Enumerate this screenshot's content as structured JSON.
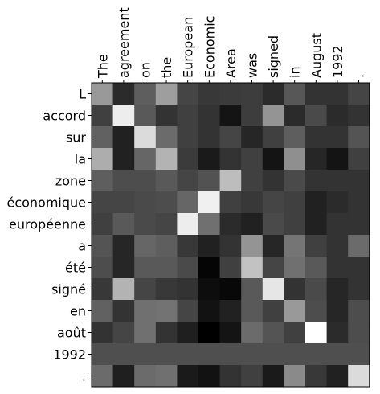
{
  "chart_data": {
    "type": "heatmap",
    "title": "",
    "xlabel": "",
    "ylabel": "",
    "colormap": "gray",
    "x_labels": [
      "The",
      "agreement",
      "on",
      "the",
      "European",
      "Economic",
      "Area",
      "was",
      "signed",
      "in",
      "August",
      "1992",
      "."
    ],
    "y_labels": [
      "L",
      "accord",
      "sur",
      "la",
      "zone",
      "économique",
      "européenne",
      "a",
      "été",
      "signé",
      "en",
      "août",
      "1992",
      "."
    ],
    "values": [
      [
        0.6,
        0.17,
        0.37,
        0.62,
        0.27,
        0.22,
        0.23,
        0.24,
        0.17,
        0.34,
        0.2,
        0.2,
        0.27
      ],
      [
        0.25,
        0.93,
        0.35,
        0.2,
        0.25,
        0.2,
        0.08,
        0.24,
        0.58,
        0.17,
        0.29,
        0.17,
        0.2
      ],
      [
        0.38,
        0.13,
        0.86,
        0.42,
        0.25,
        0.2,
        0.27,
        0.15,
        0.25,
        0.37,
        0.2,
        0.2,
        0.33
      ],
      [
        0.68,
        0.13,
        0.4,
        0.7,
        0.23,
        0.1,
        0.2,
        0.25,
        0.08,
        0.56,
        0.15,
        0.08,
        0.25
      ],
      [
        0.37,
        0.3,
        0.3,
        0.35,
        0.27,
        0.32,
        0.74,
        0.25,
        0.2,
        0.29,
        0.2,
        0.2,
        0.2
      ],
      [
        0.27,
        0.27,
        0.29,
        0.3,
        0.4,
        0.94,
        0.25,
        0.22,
        0.27,
        0.25,
        0.13,
        0.17,
        0.2
      ],
      [
        0.25,
        0.35,
        0.29,
        0.27,
        0.93,
        0.44,
        0.17,
        0.13,
        0.29,
        0.25,
        0.13,
        0.2,
        0.2
      ],
      [
        0.33,
        0.15,
        0.4,
        0.37,
        0.22,
        0.13,
        0.2,
        0.58,
        0.15,
        0.46,
        0.25,
        0.2,
        0.42
      ],
      [
        0.3,
        0.15,
        0.35,
        0.35,
        0.29,
        0.02,
        0.25,
        0.76,
        0.27,
        0.44,
        0.35,
        0.2,
        0.2
      ],
      [
        0.22,
        0.7,
        0.27,
        0.22,
        0.2,
        0.05,
        0.03,
        0.35,
        0.9,
        0.2,
        0.29,
        0.15,
        0.2
      ],
      [
        0.38,
        0.2,
        0.44,
        0.45,
        0.27,
        0.07,
        0.13,
        0.35,
        0.25,
        0.6,
        0.3,
        0.15,
        0.3
      ],
      [
        0.2,
        0.27,
        0.44,
        0.2,
        0.12,
        0.0,
        0.08,
        0.42,
        0.33,
        0.25,
        1.0,
        0.17,
        0.3
      ],
      [
        0.31,
        0.31,
        0.31,
        0.31,
        0.31,
        0.31,
        0.31,
        0.31,
        0.31,
        0.31,
        0.31,
        0.31,
        0.31
      ],
      [
        0.42,
        0.12,
        0.42,
        0.44,
        0.1,
        0.07,
        0.2,
        0.25,
        0.1,
        0.54,
        0.22,
        0.13,
        0.86
      ]
    ],
    "grid": false
  }
}
